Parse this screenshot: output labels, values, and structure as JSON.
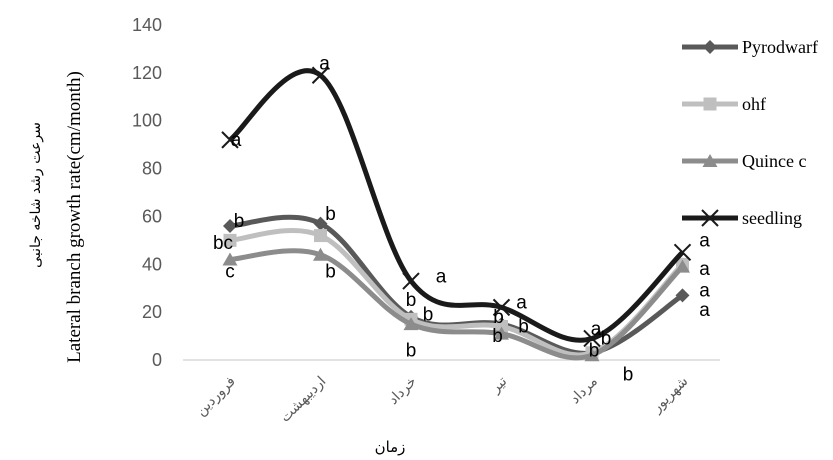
{
  "chart_data": {
    "type": "line",
    "xlabel": "زمان",
    "ylabel_fa": "سرعت رشد شاخه جانبی",
    "ylabel": "Lateral branch growth rate(cm/month)",
    "categories": [
      "فروردین",
      "اردیبهشت",
      "خرداد",
      "تیر",
      "مرداد",
      "شهریور"
    ],
    "ylim": [
      0,
      140
    ],
    "yticks": [
      "0",
      "20",
      "40",
      "60",
      "80",
      "100",
      "120",
      "140"
    ],
    "grid": false,
    "legend_position": "right",
    "series": [
      {
        "name": "Pyrodwarf",
        "color": "#595959",
        "marker": "diamond",
        "values": [
          56,
          57,
          18,
          15,
          3,
          27
        ]
      },
      {
        "name": "ohf",
        "color": "#bfbfbf",
        "marker": "square",
        "values": [
          50,
          52,
          17,
          14,
          3,
          40
        ]
      },
      {
        "name": "Quince c",
        "color": "#8c8c8c",
        "marker": "triangle",
        "values": [
          42,
          44,
          15,
          11,
          2,
          39
        ]
      },
      {
        "name": "seedling",
        "color": "#1a1a1a",
        "marker": "x",
        "values": [
          92,
          119,
          33,
          22,
          9,
          45
        ]
      }
    ],
    "annotations": [
      {
        "text": "a",
        "x": 0,
        "y": 92
      },
      {
        "text": "a",
        "x": 1,
        "y": 124
      },
      {
        "text": "b",
        "x": 0,
        "y": 58
      },
      {
        "text": "bc",
        "x": 0,
        "y": 49
      },
      {
        "text": "c",
        "x": 0,
        "y": 37
      },
      {
        "text": "b",
        "x": 1,
        "y": 61
      },
      {
        "text": "b",
        "x": 1,
        "y": 37
      },
      {
        "text": "a",
        "x": 2,
        "y": 35
      },
      {
        "text": "b",
        "x": 2,
        "y": 25
      },
      {
        "text": "b",
        "x": 2,
        "y": 19
      },
      {
        "text": "b",
        "x": 2,
        "y": 4
      },
      {
        "text": "a",
        "x": 3,
        "y": 24
      },
      {
        "text": "b",
        "x": 3,
        "y": 18
      },
      {
        "text": "b",
        "x": 3,
        "y": 14
      },
      {
        "text": "b",
        "x": 3,
        "y": 10
      },
      {
        "text": "a",
        "x": 4,
        "y": 13
      },
      {
        "text": "b",
        "x": 4,
        "y": 9
      },
      {
        "text": "b",
        "x": 4,
        "y": 4
      },
      {
        "text": "b",
        "x": 4,
        "y": -6
      },
      {
        "text": "a",
        "x": 5,
        "y": 50
      },
      {
        "text": "a",
        "x": 5,
        "y": 38
      },
      {
        "text": "a",
        "x": 5,
        "y": 29
      },
      {
        "text": "a",
        "x": 5,
        "y": 21
      }
    ]
  }
}
